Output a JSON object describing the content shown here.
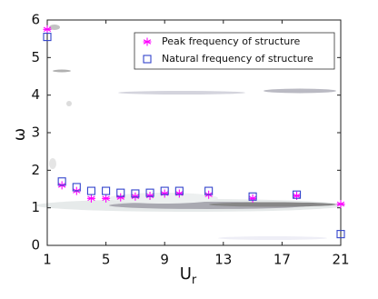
{
  "chart_data": {
    "type": "scatter",
    "xlabel": {
      "text": "U",
      "subscript": "r"
    },
    "ylabel": "ω",
    "x": [
      1,
      2,
      3,
      4,
      5,
      6,
      7,
      8,
      9,
      10,
      12,
      15,
      18,
      21
    ],
    "series": [
      {
        "name": "Peak frequency of structure",
        "color": "#ff00ff",
        "marker": "star",
        "values": [
          5.75,
          1.6,
          1.45,
          1.25,
          1.25,
          1.28,
          1.3,
          1.32,
          1.38,
          1.38,
          1.35,
          1.25,
          1.32,
          1.1
        ]
      },
      {
        "name": "Natural frequency of structure",
        "color": "#3344cc",
        "marker": "square",
        "values": [
          5.55,
          1.7,
          1.55,
          1.45,
          1.45,
          1.4,
          1.38,
          1.4,
          1.45,
          1.45,
          1.45,
          1.3,
          1.35,
          0.3
        ]
      }
    ],
    "xlim": [
      1,
      21
    ],
    "xticks": [
      1,
      5,
      9,
      13,
      17,
      21
    ],
    "ylim": [
      0,
      6
    ],
    "yticks": [
      0,
      1,
      2,
      3,
      4,
      5,
      6
    ],
    "legend": "upper right"
  }
}
